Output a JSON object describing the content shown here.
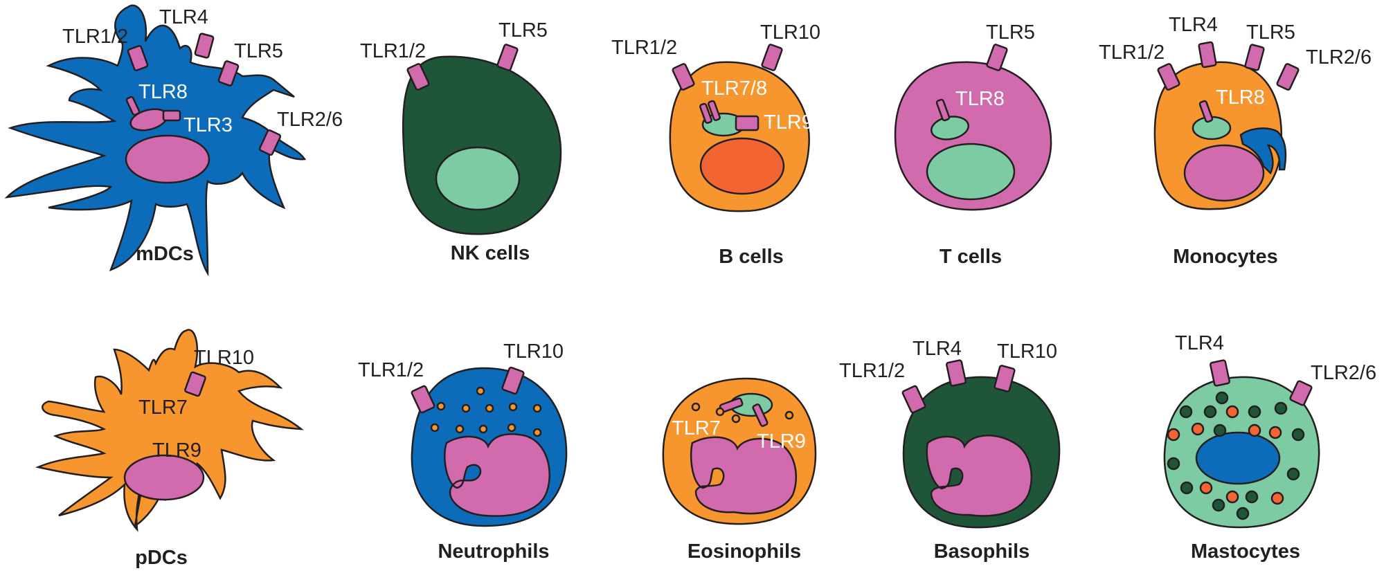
{
  "colors": {
    "mdc_blue": "#0d6cba",
    "orange": "#f7962f",
    "dark_green": "#1f563a",
    "mint": "#7ccba2",
    "pink": "#d26aae",
    "red_orange": "#f26532",
    "outline": "#231f20"
  },
  "cells": {
    "mdcs": {
      "name": "mDCs",
      "receptors": [
        "TLR1/2",
        "TLR4",
        "TLR5",
        "TLR8",
        "TLR3",
        "TLR2/6"
      ]
    },
    "nk": {
      "name": "NK cells",
      "receptors": [
        "TLR1/2",
        "TLR5"
      ]
    },
    "bcells": {
      "name": "B cells",
      "receptors": [
        "TLR1/2",
        "TLR10",
        "TLR7/8",
        "TLR9"
      ]
    },
    "tcells": {
      "name": "T cells",
      "receptors": [
        "TLR5",
        "TLR8"
      ]
    },
    "monocytes": {
      "name": "Monocytes",
      "receptors": [
        "TLR1/2",
        "TLR4",
        "TLR5",
        "TLR2/6",
        "TLR8"
      ]
    },
    "pdcs": {
      "name": "pDCs",
      "receptors": [
        "TLR10",
        "TLR7",
        "TLR9"
      ]
    },
    "neutrophils": {
      "name": "Neutrophils",
      "receptors": [
        "TLR1/2",
        "TLR10"
      ]
    },
    "eosinophils": {
      "name": "Eosinophils",
      "receptors": [
        "TLR7",
        "TLR9"
      ]
    },
    "basophils": {
      "name": "Basophils",
      "receptors": [
        "TLR1/2",
        "TLR4",
        "TLR10"
      ]
    },
    "mastocytes": {
      "name": "Mastocytes",
      "receptors": [
        "TLR4",
        "TLR2/6"
      ]
    }
  }
}
